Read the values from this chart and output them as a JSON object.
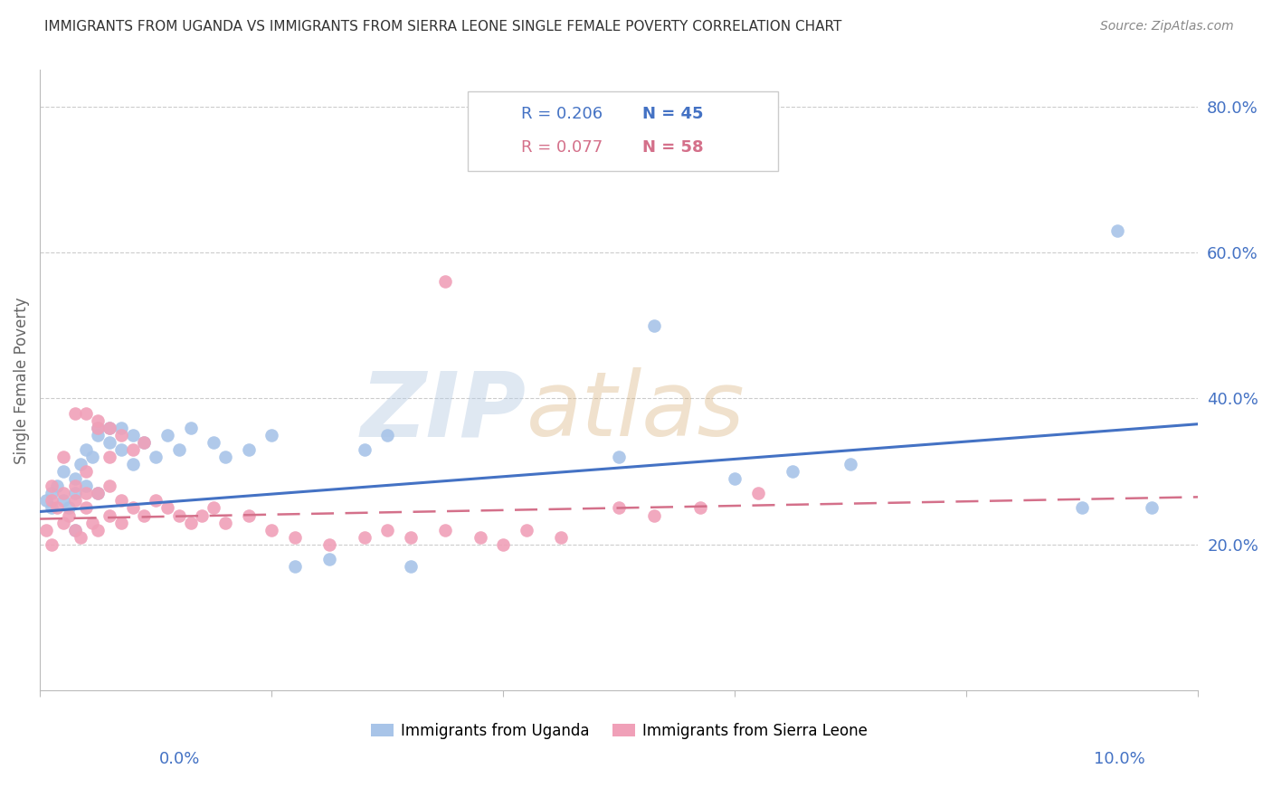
{
  "title": "IMMIGRANTS FROM UGANDA VS IMMIGRANTS FROM SIERRA LEONE SINGLE FEMALE POVERTY CORRELATION CHART",
  "source": "Source: ZipAtlas.com",
  "ylabel": "Single Female Poverty",
  "uganda_color": "#a8c4e8",
  "sierra_color": "#f0a0b8",
  "uganda_line_color": "#4472c4",
  "sierra_line_color": "#d4708a",
  "right_axis_color": "#4472c4",
  "watermark_zip": "ZIP",
  "watermark_atlas": "atlas",
  "legend1_R": "R = 0.206",
  "legend1_N": "N = 45",
  "legend2_R": "R = 0.077",
  "legend2_N": "N = 58",
  "uganda_label": "Immigrants from Uganda",
  "sierra_label": "Immigrants from Sierra Leone",
  "xlim": [
    0.0,
    0.1
  ],
  "ylim": [
    0.0,
    0.85
  ],
  "uganda_x": [
    0.0005,
    0.001,
    0.001,
    0.0015,
    0.002,
    0.002,
    0.0025,
    0.003,
    0.003,
    0.003,
    0.0035,
    0.004,
    0.004,
    0.0045,
    0.005,
    0.005,
    0.005,
    0.006,
    0.006,
    0.007,
    0.007,
    0.008,
    0.008,
    0.009,
    0.01,
    0.011,
    0.012,
    0.013,
    0.015,
    0.016,
    0.018,
    0.02,
    0.022,
    0.025,
    0.028,
    0.03,
    0.032,
    0.05,
    0.053,
    0.06,
    0.065,
    0.07,
    0.09,
    0.093,
    0.096
  ],
  "uganda_y": [
    0.26,
    0.27,
    0.25,
    0.28,
    0.26,
    0.3,
    0.25,
    0.27,
    0.22,
    0.29,
    0.31,
    0.28,
    0.33,
    0.32,
    0.35,
    0.27,
    0.36,
    0.34,
    0.36,
    0.33,
    0.36,
    0.35,
    0.31,
    0.34,
    0.32,
    0.35,
    0.33,
    0.36,
    0.34,
    0.32,
    0.33,
    0.35,
    0.17,
    0.18,
    0.33,
    0.35,
    0.17,
    0.32,
    0.5,
    0.29,
    0.3,
    0.31,
    0.25,
    0.63,
    0.25
  ],
  "sierra_x": [
    0.0005,
    0.001,
    0.001,
    0.001,
    0.0015,
    0.002,
    0.002,
    0.002,
    0.0025,
    0.003,
    0.003,
    0.003,
    0.0035,
    0.004,
    0.004,
    0.004,
    0.0045,
    0.005,
    0.005,
    0.005,
    0.006,
    0.006,
    0.006,
    0.007,
    0.007,
    0.007,
    0.008,
    0.008,
    0.009,
    0.009,
    0.01,
    0.011,
    0.012,
    0.013,
    0.014,
    0.015,
    0.016,
    0.018,
    0.02,
    0.022,
    0.025,
    0.028,
    0.03,
    0.032,
    0.035,
    0.038,
    0.04,
    0.042,
    0.045,
    0.05,
    0.053,
    0.057,
    0.062,
    0.035,
    0.003,
    0.004,
    0.005,
    0.006
  ],
  "sierra_y": [
    0.22,
    0.26,
    0.28,
    0.2,
    0.25,
    0.23,
    0.27,
    0.32,
    0.24,
    0.22,
    0.26,
    0.28,
    0.21,
    0.25,
    0.27,
    0.3,
    0.23,
    0.22,
    0.27,
    0.36,
    0.24,
    0.28,
    0.32,
    0.23,
    0.26,
    0.35,
    0.25,
    0.33,
    0.24,
    0.34,
    0.26,
    0.25,
    0.24,
    0.23,
    0.24,
    0.25,
    0.23,
    0.24,
    0.22,
    0.21,
    0.2,
    0.21,
    0.22,
    0.21,
    0.22,
    0.21,
    0.2,
    0.22,
    0.21,
    0.25,
    0.24,
    0.25,
    0.27,
    0.56,
    0.38,
    0.38,
    0.37,
    0.36
  ],
  "uganda_line_x": [
    0.0,
    0.1
  ],
  "uganda_line_y": [
    0.245,
    0.365
  ],
  "sierra_line_x": [
    0.0,
    0.1
  ],
  "sierra_line_y": [
    0.235,
    0.265
  ]
}
